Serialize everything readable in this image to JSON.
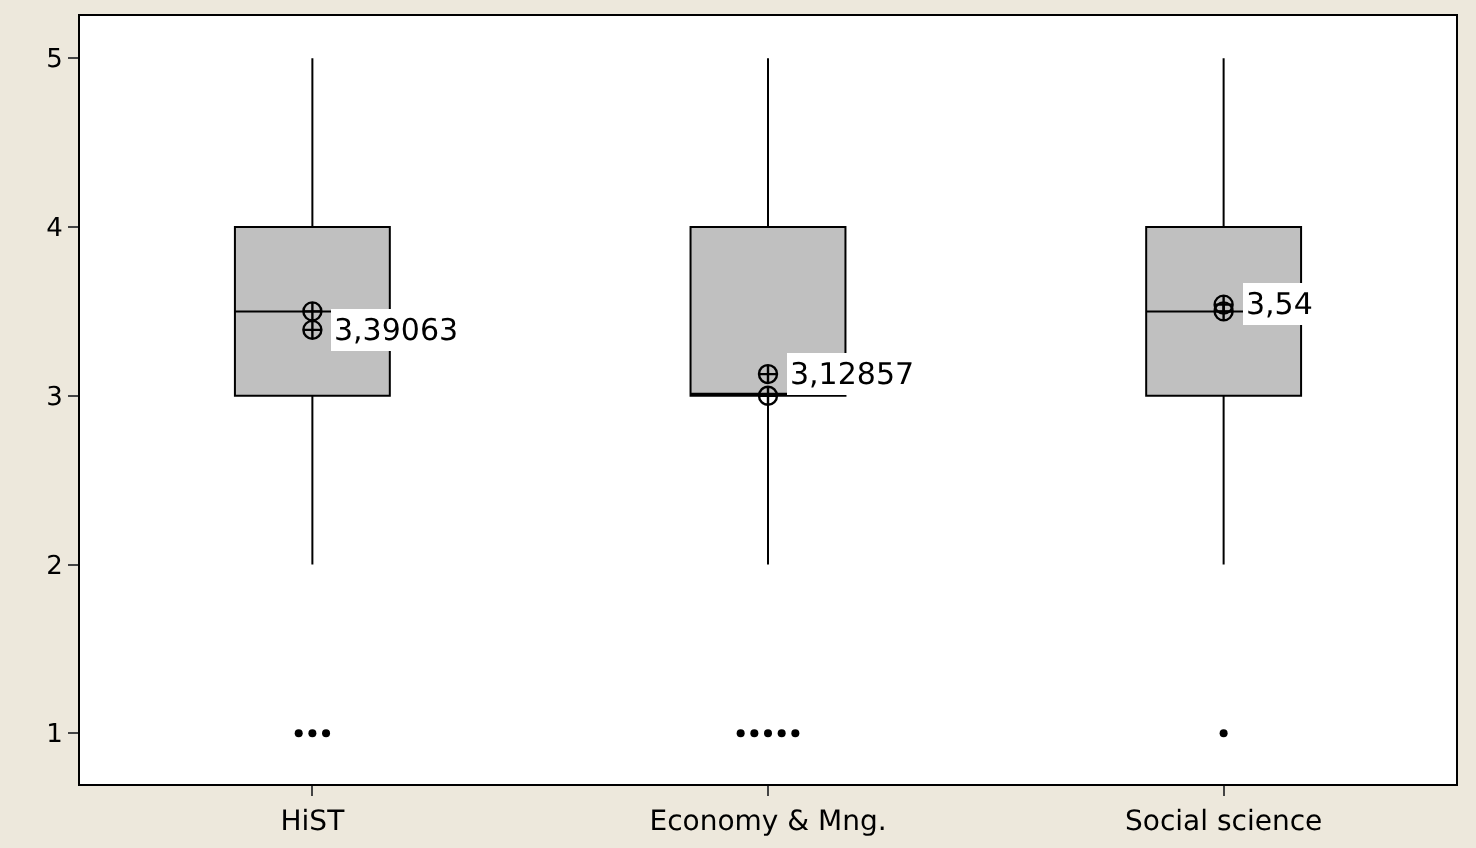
{
  "chart_data": {
    "type": "box",
    "categories": [
      "HiST",
      "Economy & Mng.",
      "Social science"
    ],
    "boxes": [
      {
        "low": 2,
        "q1": 3,
        "median": 3.5,
        "q3": 4,
        "high": 5,
        "mean": 3.39063,
        "outliers": [
          1,
          1,
          1
        ]
      },
      {
        "low": 2,
        "q1": 3,
        "median": 3,
        "q3": 4,
        "high": 5,
        "mean": 3.12857,
        "outliers": [
          1,
          1,
          1,
          1,
          1
        ]
      },
      {
        "low": 2,
        "q1": 3,
        "median": 3.5,
        "q3": 4,
        "high": 5,
        "mean": 3.54,
        "outliers": [
          1
        ]
      }
    ],
    "color": "#c0c0c0",
    "ylim": [
      0.7,
      5.25
    ],
    "yticks": [
      1,
      2,
      3,
      4,
      5
    ],
    "grid": false,
    "annotations": [
      "3,39063",
      "3,12857",
      "3,54"
    ]
  }
}
